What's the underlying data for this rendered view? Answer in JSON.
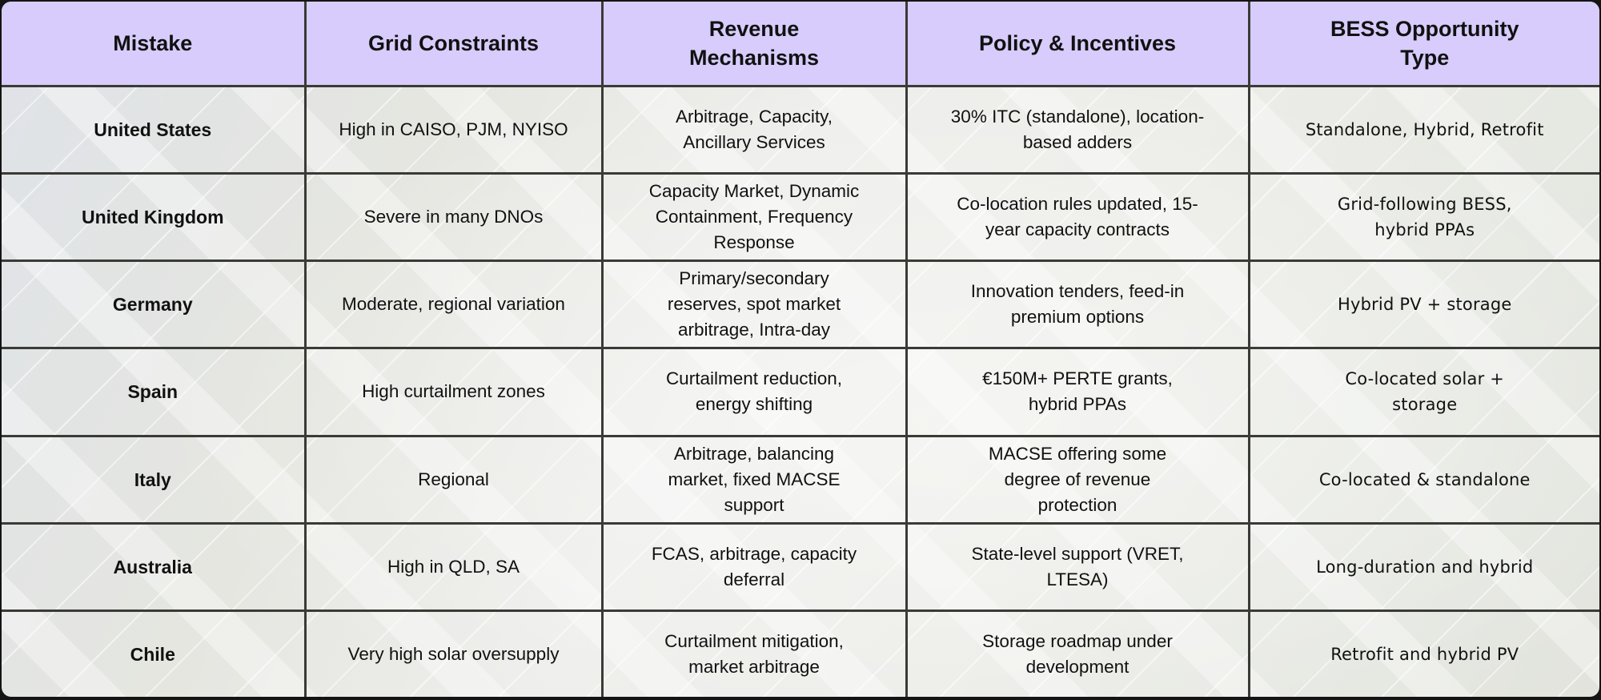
{
  "table": {
    "headers": [
      "Mistake",
      "Grid Constraints",
      "Revenue Mechanisms",
      "Policy & Incentives",
      "BESS Opportunity Type"
    ],
    "header_color": "#d8ccfc",
    "rows": [
      [
        "United States",
        "High in CAISO, PJM, NYISO",
        "Arbitrage, Capacity, Ancillary Services",
        "30% ITC (standalone), location-based adders",
        "Standalone, Hybrid, Retrofit"
      ],
      [
        "United Kingdom",
        "Severe in many DNOs",
        "Capacity Market, Dynamic Containment, Frequency Response",
        "Co-location rules updated, 15-year capacity contracts",
        "Grid-following BESS, hybrid PPAs"
      ],
      [
        "Germany",
        "Moderate, regional variation",
        "Primary/secondary reserves, spot market arbitrage, Intra-day",
        "Innovation tenders, feed-in premium options",
        "Hybrid PV + storage"
      ],
      [
        "Spain",
        "High curtailment zones",
        "Curtailment reduction, energy shifting",
        "€150M+ PERTE grants, hybrid PPAs",
        "Co-located solar + storage"
      ],
      [
        "Italy",
        "Regional",
        "Arbitrage, balancing market, fixed MACSE support",
        "MACSE offering some degree of revenue protection",
        "Co-located & standalone"
      ],
      [
        "Australia",
        "High in QLD, SA",
        "FCAS, arbitrage, capacity deferral",
        "State-level support (VRET, LTESA)",
        "Long-duration and hybrid"
      ],
      [
        "Chile",
        "Very high solar oversupply",
        "Curtailment mitigation, market arbitrage",
        "Storage roadmap under development",
        "Retrofit and hybrid PV"
      ]
    ]
  }
}
